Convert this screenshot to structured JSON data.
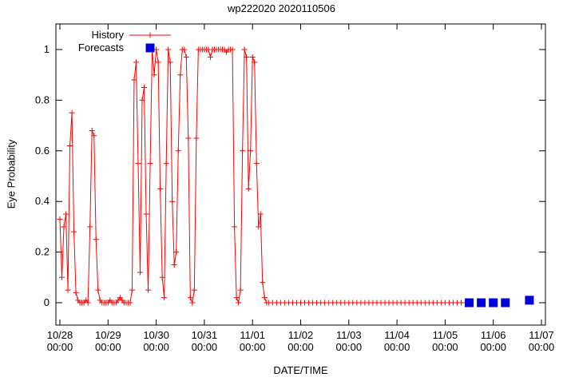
{
  "chart_data": {
    "type": "line",
    "title": "wp222020 2020110506",
    "xlabel": "DATE/TIME",
    "ylabel": "Eye Probability",
    "x_unit": "hours since 10/28 00:00",
    "xlim": [
      0,
      240
    ],
    "ylim": [
      0,
      1
    ],
    "grid": false,
    "legend_position": "top-left-inside",
    "xticks": [
      {
        "t": 0,
        "l1": "10/28",
        "l2": "00:00"
      },
      {
        "t": 24,
        "l1": "10/29",
        "l2": "00:00"
      },
      {
        "t": 48,
        "l1": "10/30",
        "l2": "00:00"
      },
      {
        "t": 72,
        "l1": "10/31",
        "l2": "00:00"
      },
      {
        "t": 96,
        "l1": "11/01",
        "l2": "00:00"
      },
      {
        "t": 120,
        "l1": "11/02",
        "l2": "00:00"
      },
      {
        "t": 144,
        "l1": "11/03",
        "l2": "00:00"
      },
      {
        "t": 168,
        "l1": "11/04",
        "l2": "00:00"
      },
      {
        "t": 192,
        "l1": "11/05",
        "l2": "00:00"
      },
      {
        "t": 216,
        "l1": "11/06",
        "l2": "00:00"
      },
      {
        "t": 240,
        "l1": "11/07",
        "l2": "00:00"
      }
    ],
    "yticks": [
      {
        "v": 0,
        "label": "0"
      },
      {
        "v": 0.2,
        "label": "0.2"
      },
      {
        "v": 0.4,
        "label": "0.4"
      },
      {
        "v": 0.6,
        "label": "0.6"
      },
      {
        "v": 0.8,
        "label": "0.8"
      },
      {
        "v": 1,
        "label": "1"
      }
    ],
    "series": [
      {
        "name": "History",
        "style": "linespoints",
        "marker": "plus",
        "color": "#ff0000",
        "points": [
          [
            0,
            0.33
          ],
          [
            1,
            0.1
          ],
          [
            2,
            0.3
          ],
          [
            3,
            0.35
          ],
          [
            4,
            0.05
          ],
          [
            5,
            0.62
          ],
          [
            6,
            0.75
          ],
          [
            7,
            0.28
          ],
          [
            8,
            0.04
          ],
          [
            9,
            0.01
          ],
          [
            10,
            0
          ],
          [
            11,
            0
          ],
          [
            12,
            0
          ],
          [
            13,
            0.01
          ],
          [
            14,
            0
          ],
          [
            15,
            0.3
          ],
          [
            16,
            0.68
          ],
          [
            17,
            0.66
          ],
          [
            18,
            0.25
          ],
          [
            19,
            0.05
          ],
          [
            20,
            0.01
          ],
          [
            21,
            0
          ],
          [
            22,
            0
          ],
          [
            23,
            0
          ],
          [
            24,
            0
          ],
          [
            25,
            0.01
          ],
          [
            26,
            0
          ],
          [
            27,
            0
          ],
          [
            28,
            0
          ],
          [
            29,
            0.01
          ],
          [
            30,
            0.02
          ],
          [
            31,
            0.01
          ],
          [
            32,
            0
          ],
          [
            33,
            0
          ],
          [
            34,
            0
          ],
          [
            35,
            0
          ],
          [
            36,
            0.05
          ],
          [
            37,
            0.88
          ],
          [
            38,
            0.95
          ],
          [
            39,
            0.55
          ],
          [
            40,
            0.12
          ],
          [
            41,
            0.8
          ],
          [
            42,
            0.85
          ],
          [
            43,
            0.35
          ],
          [
            44,
            0.05
          ],
          [
            45,
            0.55
          ],
          [
            46,
            1
          ],
          [
            47,
            0.9
          ],
          [
            48,
            1
          ],
          [
            49,
            0.95
          ],
          [
            50,
            0.45
          ],
          [
            51,
            0.1
          ],
          [
            52,
            0.02
          ],
          [
            53,
            0.55
          ],
          [
            54,
            1
          ],
          [
            55,
            0.95
          ],
          [
            56,
            0.4
          ],
          [
            57,
            0.15
          ],
          [
            58,
            0.2
          ],
          [
            59,
            0.6
          ],
          [
            60,
            0.9
          ],
          [
            61,
            1
          ],
          [
            62,
            1
          ],
          [
            63,
            0.97
          ],
          [
            64,
            0.65
          ],
          [
            65,
            0.02
          ],
          [
            66,
            0
          ],
          [
            67,
            0.05
          ],
          [
            68,
            0.65
          ],
          [
            69,
            1
          ],
          [
            70,
            1
          ],
          [
            71,
            1
          ],
          [
            72,
            1
          ],
          [
            73,
            1
          ],
          [
            74,
            1
          ],
          [
            75,
            0.97
          ],
          [
            76,
            1
          ],
          [
            77,
            1
          ],
          [
            78,
            1
          ],
          [
            79,
            1
          ],
          [
            80,
            1
          ],
          [
            81,
            1
          ],
          [
            82,
            1
          ],
          [
            83,
            0.99
          ],
          [
            84,
            1
          ],
          [
            85,
            1
          ],
          [
            86,
            1
          ],
          [
            87,
            0.3
          ],
          [
            88,
            0.02
          ],
          [
            89,
            0
          ],
          [
            90,
            0.05
          ],
          [
            91,
            0.6
          ],
          [
            92,
            1
          ],
          [
            93,
            0.97
          ],
          [
            94,
            0.45
          ],
          [
            95,
            0.6
          ],
          [
            96,
            0.97
          ],
          [
            97,
            0.95
          ],
          [
            98,
            0.55
          ],
          [
            99,
            0.3
          ],
          [
            100,
            0.35
          ],
          [
            101,
            0.08
          ],
          [
            102,
            0.02
          ],
          [
            103,
            0
          ],
          [
            104,
            0
          ],
          [
            106,
            0
          ],
          [
            108,
            0
          ],
          [
            110,
            0
          ],
          [
            112,
            0
          ],
          [
            114,
            0
          ],
          [
            116,
            0
          ],
          [
            118,
            0
          ],
          [
            120,
            0
          ],
          [
            122,
            0
          ],
          [
            124,
            0
          ],
          [
            126,
            0
          ],
          [
            128,
            0
          ],
          [
            130,
            0
          ],
          [
            132,
            0
          ],
          [
            134,
            0
          ],
          [
            136,
            0
          ],
          [
            138,
            0
          ],
          [
            140,
            0
          ],
          [
            142,
            0
          ],
          [
            144,
            0
          ],
          [
            146,
            0
          ],
          [
            148,
            0
          ],
          [
            150,
            0
          ],
          [
            152,
            0
          ],
          [
            154,
            0
          ],
          [
            156,
            0
          ],
          [
            158,
            0
          ],
          [
            160,
            0
          ],
          [
            162,
            0
          ],
          [
            164,
            0
          ],
          [
            166,
            0
          ],
          [
            168,
            0
          ],
          [
            170,
            0
          ],
          [
            172,
            0
          ],
          [
            174,
            0
          ],
          [
            176,
            0
          ],
          [
            178,
            0
          ],
          [
            180,
            0
          ],
          [
            182,
            0
          ],
          [
            184,
            0
          ],
          [
            186,
            0
          ],
          [
            188,
            0
          ],
          [
            190,
            0
          ],
          [
            192,
            0
          ],
          [
            194,
            0
          ],
          [
            196,
            0
          ],
          [
            198,
            0
          ],
          [
            200,
            0
          ],
          [
            202,
            0
          ],
          [
            204,
            0
          ]
        ]
      },
      {
        "name": "Forecasts",
        "style": "points",
        "marker": "filled-square",
        "color": "#0000dd",
        "points": [
          [
            204,
            0
          ],
          [
            210,
            0
          ],
          [
            216,
            0
          ],
          [
            222,
            0
          ],
          [
            234,
            0.01
          ]
        ]
      }
    ]
  }
}
